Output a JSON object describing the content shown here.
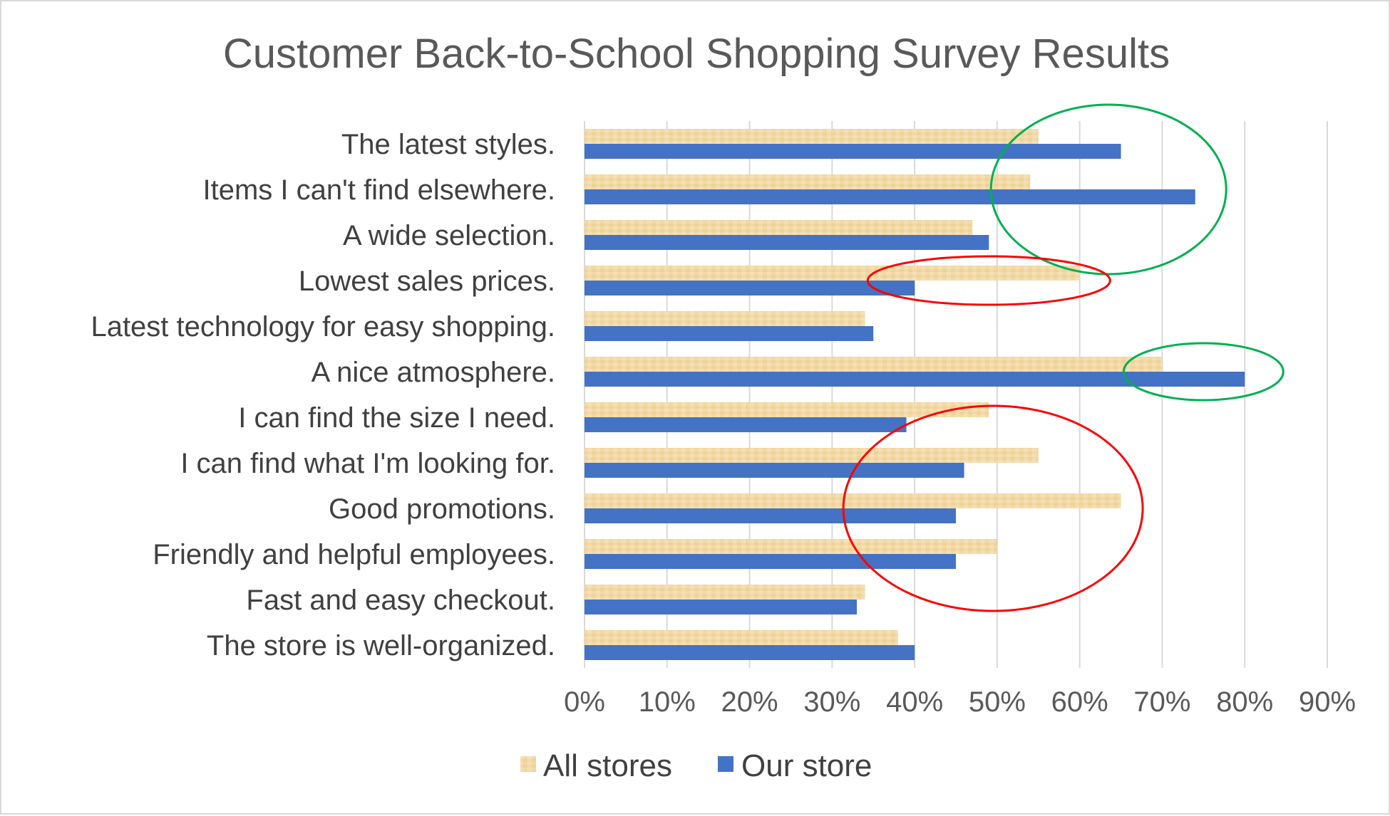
{
  "chart_data": {
    "type": "bar",
    "orientation": "horizontal",
    "title": "Customer Back-to-School Shopping Survey Results",
    "xlabel": "",
    "ylabel": "",
    "xlim": [
      0,
      90
    ],
    "grid": "vertical",
    "legend_position": "bottom",
    "x_ticks": [
      "0%",
      "10%",
      "20%",
      "30%",
      "40%",
      "50%",
      "60%",
      "70%",
      "80%",
      "90%"
    ],
    "categories": [
      "The latest styles.",
      "Items I can't find elsewhere.",
      "A wide selection.",
      "Lowest sales prices.",
      "Latest technology for easy shopping.",
      "A nice atmosphere.",
      "I can find the size I need.",
      "I can find what I'm looking for.",
      "Good promotions.",
      "Friendly and helpful employees.",
      "Fast and easy checkout.",
      "The store is well-organized."
    ],
    "series": [
      {
        "name": "All stores",
        "color": "#f2d9a6",
        "values": [
          55,
          54,
          47,
          60,
          34,
          70,
          49,
          55,
          65,
          50,
          34,
          38
        ]
      },
      {
        "name": "Our store",
        "color": "#4472c4",
        "values": [
          65,
          74,
          49,
          40,
          35,
          80,
          39,
          46,
          45,
          45,
          33,
          40
        ]
      }
    ],
    "annotations": [
      {
        "shape": "ellipse",
        "color": "#00b050",
        "center_value": 63.5,
        "category_span": [
          "The latest styles.",
          "A wide selection."
        ]
      },
      {
        "shape": "ellipse",
        "color": "#00b050",
        "center_value": 75,
        "category_span": [
          "A nice atmosphere.",
          "A nice atmosphere."
        ]
      },
      {
        "shape": "ellipse",
        "color": "#ff0000",
        "center_value": 49,
        "category_span": [
          "Lowest sales prices.",
          "Lowest sales prices."
        ]
      },
      {
        "shape": "ellipse",
        "color": "#ff0000",
        "center_value": 49.5,
        "category_span": [
          "I can find what I'm looking for.",
          "Friendly and helpful employees."
        ]
      }
    ]
  }
}
